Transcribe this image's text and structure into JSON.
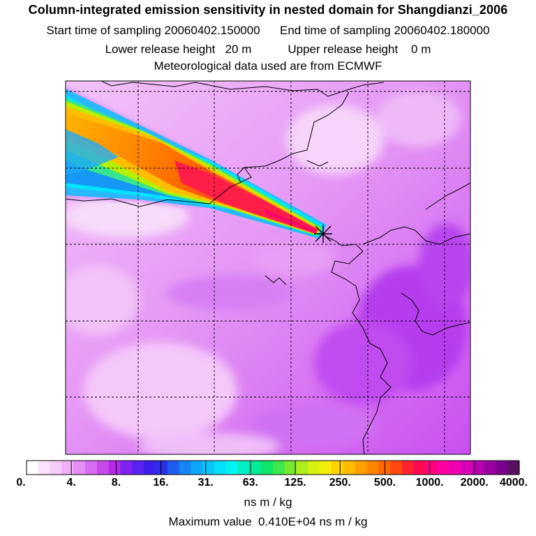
{
  "header": {
    "title": "Column-integrated emission sensitivity in nested domain for Shangdianzi_2006",
    "start_time": "Start time of sampling 20060402.150000",
    "end_time": "End time of sampling 20060402.180000",
    "lower_height": "Lower release height   20 m",
    "upper_height": "Upper release height    0 m",
    "met_data": "Meteorological data used are from ECMWF"
  },
  "map": {
    "receptor_symbol": "asterisk-marker",
    "background_level_color": "#f0b4f8",
    "plume_colors": [
      "#7be0ff",
      "#26b7ff",
      "#00e8ff",
      "#3de88a",
      "#b7f000",
      "#ffb400",
      "#ff6a00",
      "#ff1e48",
      "#ff006a"
    ]
  },
  "colorbar": {
    "tick_labels": [
      "0.",
      "4.",
      "8.",
      "16.",
      "31.",
      "63.",
      "125.",
      "250.",
      "500.",
      "1000.",
      "2000.",
      "4000."
    ],
    "unit": "ns m / kg",
    "colors": [
      "#ffffff",
      "#fbe3fd",
      "#f6cdfb",
      "#f1b1f8",
      "#e58ef4",
      "#d86cf1",
      "#c94ae9",
      "#b52ae8",
      "#7d22f0",
      "#5a22f2",
      "#3a20ec",
      "#2c2ee8",
      "#1f5df0",
      "#1684f4",
      "#0ea6f6",
      "#09c4f8",
      "#04e0fa",
      "#00f4f2",
      "#00f0c4",
      "#00ec98",
      "#10e66a",
      "#3ee84a",
      "#78ea2c",
      "#acee1a",
      "#d8f210",
      "#f6ec0a",
      "#ffd400",
      "#ffbc00",
      "#ffa000",
      "#ff8400",
      "#ff6800",
      "#ff4a10",
      "#ff2030",
      "#ff0a50",
      "#ff0080",
      "#ff00a0",
      "#f000b0",
      "#d800b8",
      "#b800b0",
      "#9a00a0",
      "#7a0090",
      "#5a1060"
    ]
  },
  "footer": {
    "max_value": "Maximum value  0.410E+04 ns m / kg"
  }
}
